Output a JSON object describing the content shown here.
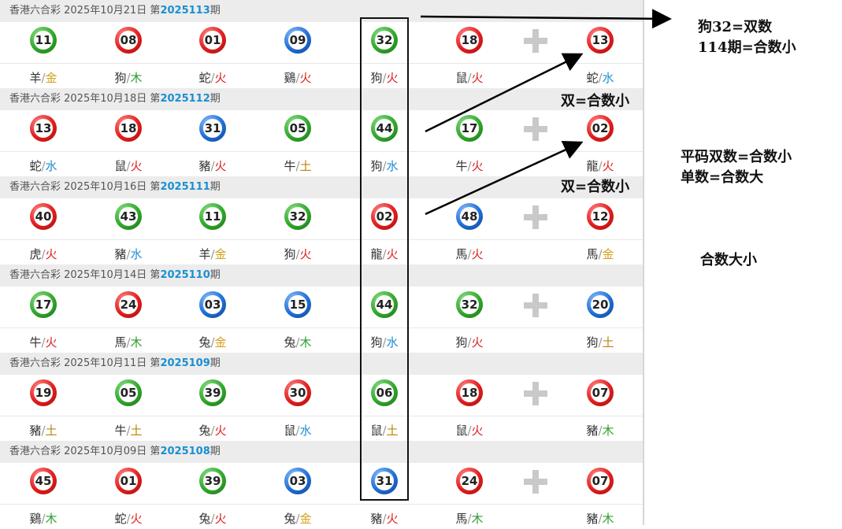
{
  "draws": [
    {
      "prefix": "香港六合彩 2025年10月21日 第",
      "issue": "2025113",
      "suffix": "期",
      "balls": [
        {
          "n": "11",
          "c": "green",
          "z": "羊",
          "e": "金"
        },
        {
          "n": "08",
          "c": "red",
          "z": "狗",
          "e": "木"
        },
        {
          "n": "01",
          "c": "red",
          "z": "蛇",
          "e": "火"
        },
        {
          "n": "09",
          "c": "blue",
          "z": "鷄",
          "e": "火"
        },
        {
          "n": "32",
          "c": "green",
          "z": "狗",
          "e": "火"
        },
        {
          "n": "18",
          "c": "red",
          "z": "鼠",
          "e": "火"
        },
        {
          "n": "13",
          "c": "red",
          "z": "蛇",
          "e": "水"
        }
      ]
    },
    {
      "prefix": "香港六合彩 2025年10月18日 第",
      "issue": "2025112",
      "suffix": "期",
      "balls": [
        {
          "n": "13",
          "c": "red",
          "z": "蛇",
          "e": "水"
        },
        {
          "n": "18",
          "c": "red",
          "z": "鼠",
          "e": "火"
        },
        {
          "n": "31",
          "c": "blue",
          "z": "豬",
          "e": "火"
        },
        {
          "n": "05",
          "c": "green",
          "z": "牛",
          "e": "土"
        },
        {
          "n": "44",
          "c": "green",
          "z": "狗",
          "e": "水"
        },
        {
          "n": "17",
          "c": "green",
          "z": "牛",
          "e": "火"
        },
        {
          "n": "02",
          "c": "red",
          "z": "龍",
          "e": "火"
        }
      ]
    },
    {
      "prefix": "香港六合彩 2025年10月16日 第",
      "issue": "2025111",
      "suffix": "期",
      "balls": [
        {
          "n": "40",
          "c": "red",
          "z": "虎",
          "e": "火"
        },
        {
          "n": "43",
          "c": "green",
          "z": "豬",
          "e": "水"
        },
        {
          "n": "11",
          "c": "green",
          "z": "羊",
          "e": "金"
        },
        {
          "n": "32",
          "c": "green",
          "z": "狗",
          "e": "火"
        },
        {
          "n": "02",
          "c": "red",
          "z": "龍",
          "e": "火"
        },
        {
          "n": "48",
          "c": "blue",
          "z": "馬",
          "e": "火"
        },
        {
          "n": "12",
          "c": "red",
          "z": "馬",
          "e": "金"
        }
      ]
    },
    {
      "prefix": "香港六合彩 2025年10月14日 第",
      "issue": "2025110",
      "suffix": "期",
      "balls": [
        {
          "n": "17",
          "c": "green",
          "z": "牛",
          "e": "火"
        },
        {
          "n": "24",
          "c": "red",
          "z": "馬",
          "e": "木"
        },
        {
          "n": "03",
          "c": "blue",
          "z": "兔",
          "e": "金"
        },
        {
          "n": "15",
          "c": "blue",
          "z": "兔",
          "e": "木"
        },
        {
          "n": "44",
          "c": "green",
          "z": "狗",
          "e": "水"
        },
        {
          "n": "32",
          "c": "green",
          "z": "狗",
          "e": "火"
        },
        {
          "n": "20",
          "c": "blue",
          "z": "狗",
          "e": "土"
        }
      ]
    },
    {
      "prefix": "香港六合彩 2025年10月11日 第",
      "issue": "2025109",
      "suffix": "期",
      "balls": [
        {
          "n": "19",
          "c": "red",
          "z": "豬",
          "e": "土"
        },
        {
          "n": "05",
          "c": "green",
          "z": "牛",
          "e": "土"
        },
        {
          "n": "39",
          "c": "green",
          "z": "兔",
          "e": "火"
        },
        {
          "n": "30",
          "c": "red",
          "z": "鼠",
          "e": "水"
        },
        {
          "n": "06",
          "c": "green",
          "z": "鼠",
          "e": "土"
        },
        {
          "n": "18",
          "c": "red",
          "z": "鼠",
          "e": "火"
        },
        {
          "n": "07",
          "c": "red",
          "z": "豬",
          "e": "木"
        }
      ]
    },
    {
      "prefix": "香港六合彩 2025年10月09日 第",
      "issue": "2025108",
      "suffix": "期",
      "balls": [
        {
          "n": "45",
          "c": "red",
          "z": "鷄",
          "e": "木"
        },
        {
          "n": "01",
          "c": "red",
          "z": "蛇",
          "e": "火"
        },
        {
          "n": "39",
          "c": "green",
          "z": "兔",
          "e": "火"
        },
        {
          "n": "03",
          "c": "blue",
          "z": "兔",
          "e": "金"
        },
        {
          "n": "31",
          "c": "blue",
          "z": "豬",
          "e": "火"
        },
        {
          "n": "24",
          "c": "red",
          "z": "馬",
          "e": "木"
        },
        {
          "n": "07",
          "c": "red",
          "z": "豬",
          "e": "木"
        }
      ]
    }
  ],
  "element_colors": {
    "金": "#d4a017",
    "木": "#2e9e2e",
    "水": "#1a8fd1",
    "火": "#e02020",
    "土": "#b8860b"
  },
  "annotations": {
    "note1_line1": "狗32=双数",
    "note1_line2": "114期=合数小",
    "note2": "双=合数小",
    "note3": "双=合数小",
    "note4_line1": "平码双数=合数小",
    "note4_line2": "单数=合数大",
    "note5": "合数大小"
  }
}
